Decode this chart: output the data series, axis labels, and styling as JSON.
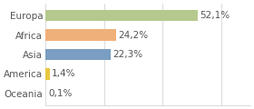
{
  "categories": [
    "Europa",
    "Africa",
    "Asia",
    "America",
    "Oceania"
  ],
  "values": [
    52.1,
    24.2,
    22.3,
    1.4,
    0.1
  ],
  "labels": [
    "52,1%",
    "24,2%",
    "22,3%",
    "1,4%",
    "0,1%"
  ],
  "bar_colors": [
    "#b5c98e",
    "#f0b07a",
    "#7a9fc2",
    "#e8c840",
    "#e8c840"
  ],
  "background_color": "#ffffff",
  "xlim": [
    0,
    70
  ],
  "label_fontsize": 7.5,
  "tick_fontsize": 7.5,
  "bar_height": 0.6,
  "grid_color": "#cccccc",
  "grid_xvals": [
    0,
    20,
    40,
    60
  ],
  "text_color": "#555555"
}
